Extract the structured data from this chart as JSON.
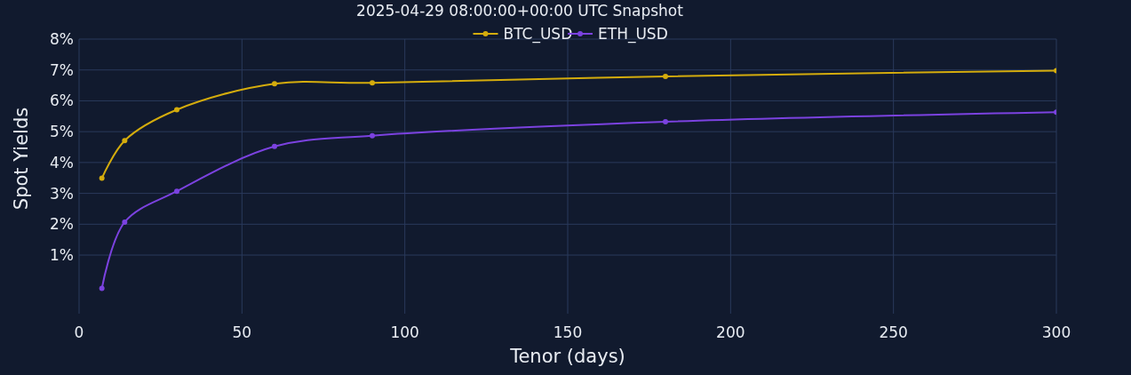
{
  "chart_data": {
    "type": "line",
    "title": "2025-04-29 08:00:00+00:00 UTC Snapshot",
    "xlabel": "Tenor (days)",
    "ylabel": "Spot Yields",
    "xlim": [
      0,
      300
    ],
    "xticks": [
      0,
      50,
      100,
      150,
      200,
      250,
      300
    ],
    "ylim": [
      -0.9,
      8
    ],
    "yticks": [
      {
        "value": 1,
        "label": "1%"
      },
      {
        "value": 2,
        "label": "2%"
      },
      {
        "value": 3,
        "label": "3%"
      },
      {
        "value": 4,
        "label": "4%"
      },
      {
        "value": 5,
        "label": "5%"
      },
      {
        "value": 6,
        "label": "6%"
      },
      {
        "value": 7,
        "label": "7%"
      },
      {
        "value": 8,
        "label": "8%"
      }
    ],
    "grid": true,
    "legend": "top",
    "marker": "circle",
    "line_style": "solid",
    "series": [
      {
        "name": "BTC_USD",
        "color": "#d4ac0d",
        "x": [
          7,
          14,
          30,
          60,
          90,
          180,
          300
        ],
        "values": [
          3.49,
          4.71,
          5.71,
          6.55,
          6.58,
          6.79,
          6.98
        ]
      },
      {
        "name": "ETH_USD",
        "color": "#7b42e0",
        "x": [
          7,
          14,
          30,
          60,
          90,
          180,
          300
        ],
        "values": [
          -0.08,
          2.07,
          3.07,
          4.52,
          4.87,
          5.32,
          5.63
        ]
      }
    ]
  }
}
